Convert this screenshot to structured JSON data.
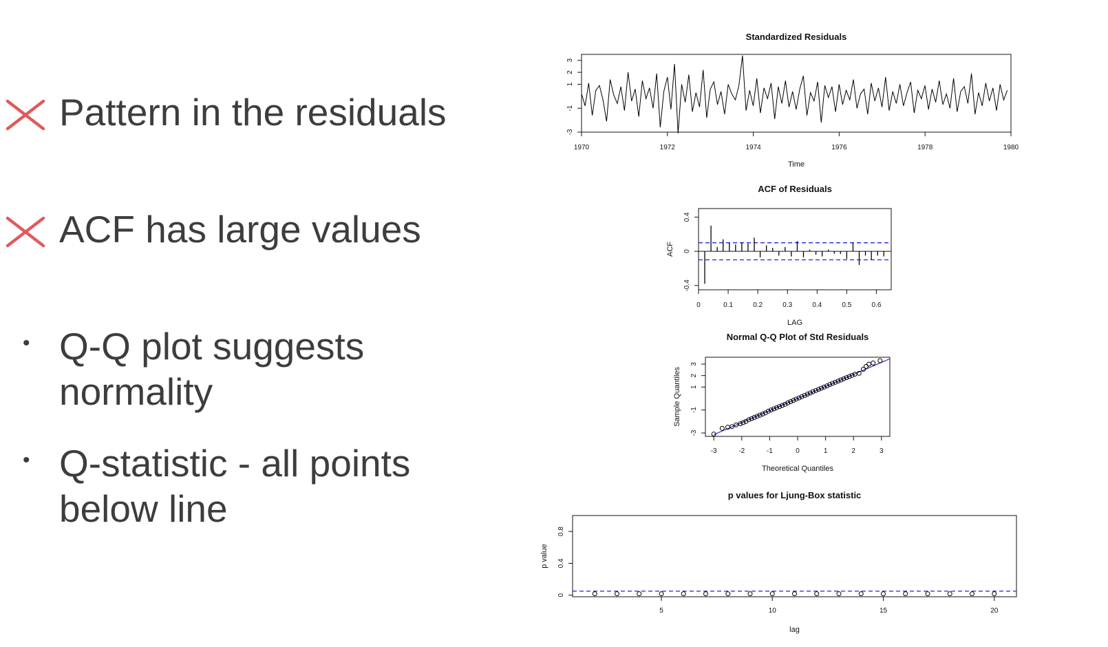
{
  "bullets": [
    {
      "marker": "cross-icon",
      "text": "Pattern in the residuals"
    },
    {
      "marker": "cross-icon",
      "text": "ACF has large values"
    },
    {
      "marker": "bullet-dot",
      "text": "Q-Q plot suggests\nnormality"
    },
    {
      "marker": "bullet-dot",
      "text": "Q-statistic - all points\nbelow line"
    }
  ],
  "bullet_dot_glyph": "•",
  "colors": {
    "cross": "#e05a5a",
    "ref_line": "#2222dd",
    "text": "#3d3d3d"
  },
  "chart_data": [
    {
      "type": "line",
      "title": "Standardized Residuals",
      "xlabel": "Time",
      "ylabel": "",
      "xlim": [
        1970,
        1980
      ],
      "ylim": [
        -3,
        3.5
      ],
      "x_ticks": [
        1970,
        1972,
        1974,
        1976,
        1978,
        1980
      ],
      "y_ticks": [
        -3,
        -1,
        1,
        2,
        3
      ],
      "series_description": "monthly standardized residuals 1970-1979.8, roughly within [-3, 3.4]",
      "series": [
        {
          "x_start": 1970,
          "x_step": 0.0833,
          "values": [
            0.2,
            -0.8,
            1.1,
            -1.6,
            0.5,
            0.9,
            -0.3,
            -2.1,
            1.4,
            0.1,
            -0.6,
            0.8,
            -1.2,
            2.0,
            -0.4,
            0.6,
            -1.7,
            1.3,
            -0.2,
            0.7,
            -1.0,
            1.9,
            -2.6,
            0.4,
            1.6,
            -1.1,
            2.7,
            -3.1,
            1.0,
            -0.5,
            1.8,
            -1.3,
            0.3,
            -0.9,
            2.2,
            -1.8,
            0.6,
            1.2,
            -0.7,
            0.4,
            -1.5,
            1.0,
            0.2,
            -0.3,
            0.9,
            3.4,
            -1.2,
            0.5,
            -0.8,
            1.5,
            -1.4,
            0.7,
            -0.2,
            1.1,
            -1.9,
            0.8,
            -0.6,
            1.3,
            -0.9,
            0.4,
            -1.1,
            0.6,
            1.7,
            -1.6,
            0.3,
            -0.4,
            1.2,
            -2.2,
            0.9,
            -0.1,
            0.8,
            -1.3,
            1.0,
            -0.7,
            0.5,
            -0.3,
            1.4,
            -1.0,
            0.2,
            0.6,
            -1.5,
            1.1,
            -0.4,
            0.7,
            -0.9,
            1.6,
            -1.2,
            0.4,
            -0.6,
            1.0,
            -0.8,
            0.3,
            1.2,
            -1.4,
            0.5,
            -0.2,
            0.9,
            -1.1,
            0.6,
            -0.5,
            1.3,
            -0.7,
            0.2,
            -1.0,
            1.5,
            -1.3,
            0.4,
            0.8,
            -0.6,
            1.9,
            -1.5,
            0.3,
            -0.8,
            1.1,
            -0.4,
            0.7,
            -1.2,
            1.0,
            -0.3,
            0.5
          ]
        }
      ]
    },
    {
      "type": "bar",
      "title": "ACF of Residuals",
      "xlabel": "LAG",
      "ylabel": "ACF",
      "xlim": [
        0.0,
        0.65
      ],
      "ylim": [
        -0.45,
        0.5
      ],
      "x_ticks": [
        0.0,
        0.1,
        0.2,
        0.3,
        0.4,
        0.5,
        0.6
      ],
      "y_ticks": [
        -0.4,
        0.0,
        0.4
      ],
      "confidence_band": [
        -0.1,
        0.1
      ],
      "lags": [
        0.021,
        0.042,
        0.063,
        0.083,
        0.104,
        0.125,
        0.146,
        0.167,
        0.188,
        0.208,
        0.229,
        0.25,
        0.271,
        0.292,
        0.313,
        0.333,
        0.354,
        0.375,
        0.396,
        0.417,
        0.438,
        0.458,
        0.479,
        0.5,
        0.521,
        0.542,
        0.563,
        0.583,
        0.604,
        0.625
      ],
      "values": [
        -0.38,
        0.3,
        0.05,
        0.14,
        0.1,
        0.08,
        0.1,
        0.09,
        0.16,
        -0.07,
        0.07,
        0.04,
        -0.05,
        0.05,
        -0.06,
        0.12,
        -0.07,
        0.02,
        -0.04,
        -0.06,
        0.02,
        -0.03,
        -0.03,
        -0.09,
        0.1,
        -0.16,
        -0.05,
        -0.1,
        -0.05,
        -0.06
      ]
    },
    {
      "type": "scatter",
      "title": "Normal Q-Q Plot of Std Residuals",
      "xlabel": "Theoretical Quantiles",
      "ylabel": "Sample Quantiles",
      "xlim": [
        -3.3,
        3.3
      ],
      "ylim": [
        -3.3,
        3.6
      ],
      "x_ticks": [
        -3,
        -2,
        -1,
        0,
        1,
        2,
        3
      ],
      "y_ticks": [
        -3,
        -1,
        1,
        2,
        3
      ],
      "reference_line": {
        "intercept": 0.0,
        "slope": 1.05
      },
      "points": [
        [
          -3.0,
          -3.1
        ],
        [
          -2.7,
          -2.6
        ],
        [
          -2.5,
          -2.5
        ],
        [
          -2.35,
          -2.45
        ],
        [
          -2.2,
          -2.3
        ],
        [
          -2.05,
          -2.2
        ],
        [
          -1.95,
          -2.1
        ],
        [
          -1.85,
          -2.0
        ],
        [
          -1.75,
          -1.85
        ],
        [
          -1.65,
          -1.75
        ],
        [
          -1.55,
          -1.65
        ],
        [
          -1.45,
          -1.55
        ],
        [
          -1.35,
          -1.45
        ],
        [
          -1.25,
          -1.35
        ],
        [
          -1.15,
          -1.25
        ],
        [
          -1.05,
          -1.1
        ],
        [
          -0.95,
          -1.0
        ],
        [
          -0.85,
          -0.9
        ],
        [
          -0.75,
          -0.8
        ],
        [
          -0.65,
          -0.7
        ],
        [
          -0.55,
          -0.6
        ],
        [
          -0.45,
          -0.5
        ],
        [
          -0.35,
          -0.38
        ],
        [
          -0.25,
          -0.27
        ],
        [
          -0.15,
          -0.16
        ],
        [
          -0.05,
          -0.05
        ],
        [
          0.05,
          0.05
        ],
        [
          0.15,
          0.16
        ],
        [
          0.25,
          0.27
        ],
        [
          0.35,
          0.38
        ],
        [
          0.45,
          0.48
        ],
        [
          0.55,
          0.6
        ],
        [
          0.65,
          0.7
        ],
        [
          0.75,
          0.8
        ],
        [
          0.85,
          0.9
        ],
        [
          0.95,
          1.0
        ],
        [
          1.05,
          1.1
        ],
        [
          1.15,
          1.22
        ],
        [
          1.25,
          1.32
        ],
        [
          1.35,
          1.42
        ],
        [
          1.45,
          1.52
        ],
        [
          1.55,
          1.62
        ],
        [
          1.65,
          1.72
        ],
        [
          1.75,
          1.82
        ],
        [
          1.85,
          1.92
        ],
        [
          1.95,
          2.02
        ],
        [
          2.05,
          2.12
        ],
        [
          2.2,
          2.2
        ],
        [
          2.35,
          2.55
        ],
        [
          2.45,
          2.8
        ],
        [
          2.55,
          3.0
        ],
        [
          2.7,
          3.1
        ],
        [
          2.95,
          3.3
        ]
      ]
    },
    {
      "type": "scatter",
      "title": "p values for Ljung-Box statistic",
      "xlabel": "lag",
      "ylabel": "p value",
      "xlim": [
        1,
        21
      ],
      "ylim": [
        -0.02,
        1.0
      ],
      "x_ticks": [
        5,
        10,
        15,
        20
      ],
      "y_ticks": [
        0.0,
        0.4,
        0.8
      ],
      "significance_line": 0.05,
      "points": [
        [
          2,
          0.0
        ],
        [
          3,
          0.0
        ],
        [
          4,
          0.0
        ],
        [
          5,
          0.0
        ],
        [
          6,
          0.0
        ],
        [
          7,
          0.0
        ],
        [
          8,
          0.0
        ],
        [
          9,
          0.0
        ],
        [
          10,
          0.0
        ],
        [
          11,
          0.0
        ],
        [
          12,
          0.0
        ],
        [
          13,
          0.0
        ],
        [
          14,
          0.0
        ],
        [
          15,
          0.0
        ],
        [
          16,
          0.0
        ],
        [
          17,
          0.0
        ],
        [
          18,
          0.0
        ],
        [
          19,
          0.0
        ],
        [
          20,
          0.0
        ]
      ]
    }
  ]
}
